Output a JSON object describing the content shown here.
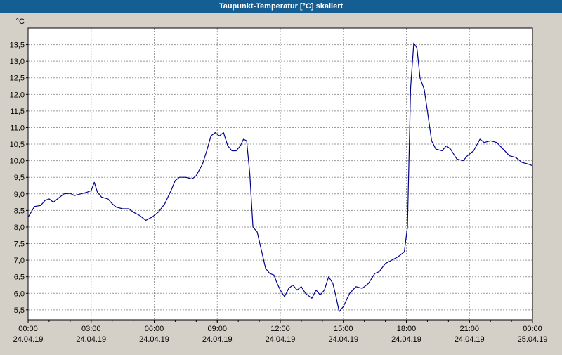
{
  "window": {
    "title": "Taupunkt-Temperatur [°C] skaliert"
  },
  "chart_data": {
    "type": "line",
    "title": "Taupunkt-Temperatur [°C] skaliert",
    "ylabel": "°C",
    "ylim": [
      5.2,
      14.0
    ],
    "yticks": [
      5.5,
      6.0,
      6.5,
      7.0,
      7.5,
      8.0,
      8.5,
      9.0,
      9.5,
      10.0,
      10.5,
      11.0,
      11.5,
      12.0,
      12.5,
      13.0,
      13.5
    ],
    "xlim": [
      0,
      24
    ],
    "xticks_hours": [
      0,
      3,
      6,
      9,
      12,
      15,
      18,
      21,
      24
    ],
    "xtick_time_labels": [
      "00:00",
      "03:00",
      "06:00",
      "09:00",
      "12:00",
      "15:00",
      "18:00",
      "21:00",
      "00:00"
    ],
    "xtick_date_labels": [
      "24.04.19",
      "24.04.19",
      "24.04.19",
      "24.04.19",
      "24.04.19",
      "24.04.19",
      "24.04.19",
      "24.04.19",
      "25.04.19"
    ],
    "line_color": "#00008c",
    "grid_color": "#999999",
    "plot_bg": "#ffffff",
    "series": [
      {
        "name": "Taupunkt-Temperatur",
        "points": [
          [
            0.0,
            8.3
          ],
          [
            0.15,
            8.45
          ],
          [
            0.3,
            8.62
          ],
          [
            0.6,
            8.65
          ],
          [
            0.8,
            8.8
          ],
          [
            1.0,
            8.85
          ],
          [
            1.2,
            8.75
          ],
          [
            1.5,
            8.9
          ],
          [
            1.7,
            9.0
          ],
          [
            2.0,
            9.02
          ],
          [
            2.2,
            8.95
          ],
          [
            2.5,
            9.0
          ],
          [
            2.8,
            9.05
          ],
          [
            3.0,
            9.1
          ],
          [
            3.15,
            9.35
          ],
          [
            3.3,
            9.05
          ],
          [
            3.5,
            8.9
          ],
          [
            3.8,
            8.85
          ],
          [
            4.0,
            8.7
          ],
          [
            4.2,
            8.6
          ],
          [
            4.5,
            8.55
          ],
          [
            4.8,
            8.55
          ],
          [
            5.0,
            8.45
          ],
          [
            5.3,
            8.35
          ],
          [
            5.6,
            8.2
          ],
          [
            5.9,
            8.3
          ],
          [
            6.2,
            8.45
          ],
          [
            6.5,
            8.7
          ],
          [
            6.8,
            9.1
          ],
          [
            7.0,
            9.4
          ],
          [
            7.2,
            9.5
          ],
          [
            7.5,
            9.5
          ],
          [
            7.8,
            9.45
          ],
          [
            8.0,
            9.55
          ],
          [
            8.3,
            9.9
          ],
          [
            8.5,
            10.3
          ],
          [
            8.7,
            10.75
          ],
          [
            8.9,
            10.85
          ],
          [
            9.1,
            10.75
          ],
          [
            9.3,
            10.85
          ],
          [
            9.5,
            10.45
          ],
          [
            9.7,
            10.3
          ],
          [
            9.9,
            10.3
          ],
          [
            10.1,
            10.45
          ],
          [
            10.25,
            10.65
          ],
          [
            10.4,
            10.6
          ],
          [
            10.55,
            9.6
          ],
          [
            10.7,
            8.0
          ],
          [
            10.9,
            7.85
          ],
          [
            11.1,
            7.3
          ],
          [
            11.3,
            6.75
          ],
          [
            11.5,
            6.6
          ],
          [
            11.7,
            6.55
          ],
          [
            11.85,
            6.3
          ],
          [
            12.0,
            6.1
          ],
          [
            12.2,
            5.9
          ],
          [
            12.4,
            6.15
          ],
          [
            12.6,
            6.25
          ],
          [
            12.8,
            6.1
          ],
          [
            13.0,
            6.2
          ],
          [
            13.2,
            6.0
          ],
          [
            13.5,
            5.85
          ],
          [
            13.7,
            6.1
          ],
          [
            13.9,
            5.95
          ],
          [
            14.1,
            6.1
          ],
          [
            14.3,
            6.5
          ],
          [
            14.5,
            6.3
          ],
          [
            14.65,
            5.9
          ],
          [
            14.8,
            5.45
          ],
          [
            15.0,
            5.6
          ],
          [
            15.3,
            6.0
          ],
          [
            15.6,
            6.2
          ],
          [
            15.9,
            6.15
          ],
          [
            16.2,
            6.3
          ],
          [
            16.5,
            6.6
          ],
          [
            16.7,
            6.65
          ],
          [
            17.0,
            6.9
          ],
          [
            17.3,
            7.0
          ],
          [
            17.6,
            7.1
          ],
          [
            17.9,
            7.25
          ],
          [
            18.05,
            8.0
          ],
          [
            18.2,
            12.2
          ],
          [
            18.35,
            13.55
          ],
          [
            18.5,
            13.4
          ],
          [
            18.65,
            12.5
          ],
          [
            18.85,
            12.15
          ],
          [
            19.0,
            11.5
          ],
          [
            19.2,
            10.6
          ],
          [
            19.4,
            10.35
          ],
          [
            19.7,
            10.3
          ],
          [
            19.9,
            10.45
          ],
          [
            20.1,
            10.35
          ],
          [
            20.4,
            10.05
          ],
          [
            20.7,
            10.0
          ],
          [
            20.9,
            10.15
          ],
          [
            21.2,
            10.3
          ],
          [
            21.5,
            10.65
          ],
          [
            21.7,
            10.55
          ],
          [
            22.0,
            10.6
          ],
          [
            22.3,
            10.55
          ],
          [
            22.6,
            10.35
          ],
          [
            22.9,
            10.15
          ],
          [
            23.2,
            10.1
          ],
          [
            23.5,
            9.95
          ],
          [
            23.8,
            9.9
          ],
          [
            24.0,
            9.85
          ]
        ]
      }
    ]
  }
}
